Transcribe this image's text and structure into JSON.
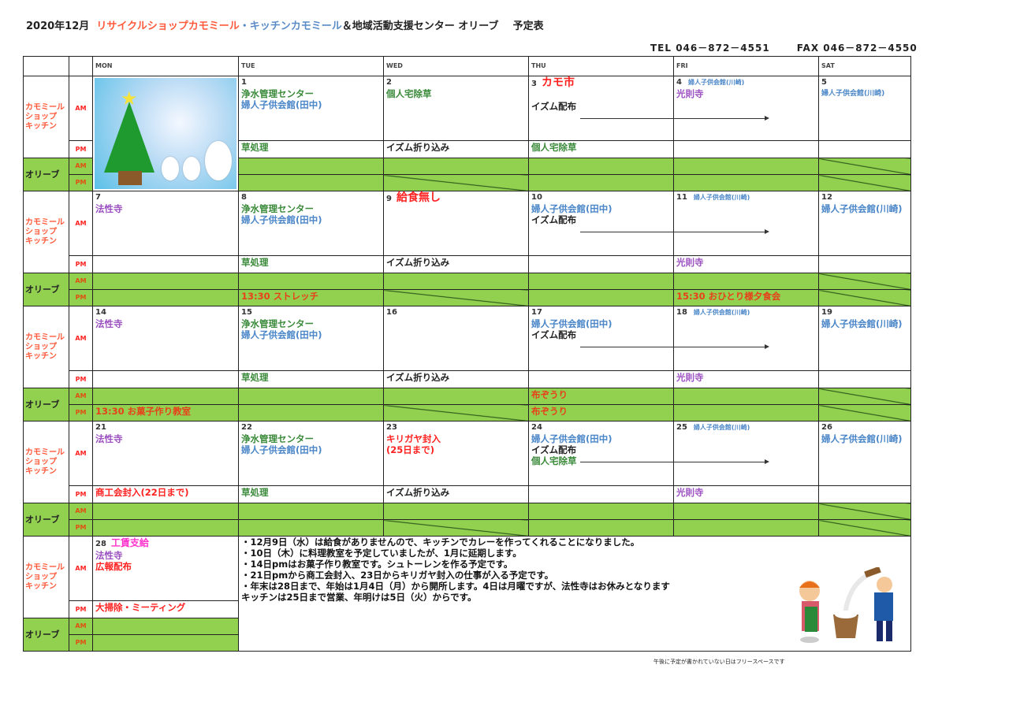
{
  "title": {
    "date": "2020年12月",
    "part1": "リサイクルショップカモミール",
    "dot": "・",
    "part2": "キッチンカモミール",
    "part3": "＆地域活動支援センター オリーブ",
    "part4": "予定表"
  },
  "contact": {
    "tel": "TEL 046－872－4551",
    "fax": "FAX 046－872－4550"
  },
  "weekdays": [
    "MON",
    "TUE",
    "WED",
    "THU",
    "FRI",
    "SAT"
  ],
  "groups": {
    "shop": "カモミール\nショップ\nキッチン",
    "olive": "オリーブ",
    "am": "AM",
    "pm": "PM"
  },
  "colors": {
    "green": "#3a8a3a",
    "blue": "#4a86c8",
    "purple": "#9b4fc0",
    "red": "#ff2020",
    "black": "#222222",
    "orange": "#e8401a",
    "fill": "#92d050"
  },
  "weeks": [
    {
      "days": [
        {
          "image": "christmas-tree-snowmen"
        },
        {
          "n": "1",
          "am": [
            {
              "t": "浄水管理センター",
              "c": "green"
            },
            {
              "t": "婦人子供会館(田中)",
              "c": "blue"
            }
          ],
          "pm": [
            {
              "t": "草処理",
              "c": "green"
            }
          ]
        },
        {
          "n": "2",
          "am": [
            {
              "t": "個人宅除草",
              "c": "green"
            }
          ],
          "pm": [
            {
              "t": "イズム折り込み",
              "c": "black"
            }
          ],
          "opm": {
            "crossed": true
          }
        },
        {
          "n": "3",
          "tag": {
            "t": "カモ市",
            "k": "big"
          },
          "am": [
            {
              "t": "",
              "c": "black"
            },
            {
              "t": "イズム配布",
              "c": "black",
              "arrow": true
            }
          ],
          "pm": [
            {
              "t": "個人宅除草",
              "c": "green"
            }
          ]
        },
        {
          "n": "4",
          "tag": {
            "t": "婦人子供会館(川崎)",
            "k": "small"
          },
          "am": [
            {
              "t": "光則寺",
              "c": "purple"
            }
          ]
        },
        {
          "n": "5",
          "am": [
            {
              "t": "婦人子供会館(川崎)",
              "c": "blue",
              "small": true
            }
          ],
          "oam": {
            "crossed": true
          },
          "opm": {
            "crossed": true
          }
        }
      ]
    },
    {
      "days": [
        {
          "n": "7",
          "am": [
            {
              "t": "法性寺",
              "c": "purple"
            }
          ]
        },
        {
          "n": "8",
          "am": [
            {
              "t": "浄水管理センター",
              "c": "green"
            },
            {
              "t": "婦人子供会館(田中)",
              "c": "blue"
            }
          ],
          "pm": [
            {
              "t": "草処理",
              "c": "green"
            }
          ],
          "opm": {
            "t": "13:30 ストレッチ"
          }
        },
        {
          "n": "9",
          "tag": {
            "t": "給食無し",
            "k": "big"
          },
          "pm": [
            {
              "t": "イズム折り込み",
              "c": "black"
            }
          ],
          "opm": {
            "crossed": true
          }
        },
        {
          "n": "10",
          "am": [
            {
              "t": "婦人子供会館(田中)",
              "c": "blue"
            },
            {
              "t": "イズム配布",
              "c": "black",
              "arrow": true
            }
          ]
        },
        {
          "n": "11",
          "tag": {
            "t": "婦人子供会館(川崎)",
            "k": "small"
          },
          "pm": [
            {
              "t": "光則寺",
              "c": "purple"
            }
          ],
          "opm": {
            "t": "15:30 おひとり様夕食会"
          }
        },
        {
          "n": "12",
          "am": [
            {
              "t": "婦人子供会館(川崎)",
              "c": "blue"
            }
          ],
          "oam": {
            "crossed": true
          },
          "opm": {
            "crossed": true
          }
        }
      ]
    },
    {
      "days": [
        {
          "n": "14",
          "am": [
            {
              "t": "法性寺",
              "c": "purple"
            }
          ],
          "opm": {
            "t": "13:30 お菓子作り教室"
          }
        },
        {
          "n": "15",
          "am": [
            {
              "t": "浄水管理センター",
              "c": "green"
            },
            {
              "t": "婦人子供会館(田中)",
              "c": "blue"
            }
          ],
          "pm": [
            {
              "t": "草処理",
              "c": "green"
            }
          ]
        },
        {
          "n": "16",
          "pm": [
            {
              "t": "イズム折り込み",
              "c": "black"
            }
          ],
          "opm": {
            "crossed": true
          }
        },
        {
          "n": "17",
          "am": [
            {
              "t": "婦人子供会館(田中)",
              "c": "blue"
            },
            {
              "t": "イズム配布",
              "c": "black",
              "arrow": true
            }
          ],
          "oam": {
            "t": "布ぞうり"
          },
          "opm": {
            "t": "布ぞうり"
          }
        },
        {
          "n": "18",
          "tag": {
            "t": "婦人子供会館(川崎)",
            "k": "small"
          },
          "pm": [
            {
              "t": "光則寺",
              "c": "purple"
            }
          ]
        },
        {
          "n": "19",
          "am": [
            {
              "t": "婦人子供会館(川崎)",
              "c": "blue"
            }
          ],
          "oam": {
            "crossed": true
          },
          "opm": {
            "crossed": true
          }
        }
      ]
    },
    {
      "days": [
        {
          "n": "21",
          "am": [
            {
              "t": "法性寺",
              "c": "purple"
            }
          ],
          "pm": [
            {
              "t": "商工会封入(22日まで)",
              "c": "red"
            }
          ]
        },
        {
          "n": "22",
          "am": [
            {
              "t": "浄水管理センター",
              "c": "green"
            },
            {
              "t": "婦人子供会館(田中)",
              "c": "blue"
            }
          ],
          "pm": [
            {
              "t": "草処理",
              "c": "green"
            }
          ]
        },
        {
          "n": "23",
          "am": [
            {
              "t": "キリガヤ封入",
              "c": "red"
            },
            {
              "t": "(25日まで)",
              "c": "red"
            }
          ],
          "pm": [
            {
              "t": "イズム折り込み",
              "c": "black"
            }
          ],
          "opm": {
            "crossed": true
          }
        },
        {
          "n": "24",
          "am": [
            {
              "t": "婦人子供会館(田中)",
              "c": "blue"
            },
            {
              "t": "イズム配布",
              "c": "black",
              "arrow": true
            },
            {
              "t": "個人宅除草",
              "c": "green"
            }
          ]
        },
        {
          "n": "25",
          "tag": {
            "t": "婦人子供会館(川崎)",
            "k": "small"
          },
          "pm": [
            {
              "t": "光則寺",
              "c": "purple"
            }
          ]
        },
        {
          "n": "26",
          "am": [
            {
              "t": "婦人子供会館(川崎)",
              "c": "blue"
            }
          ],
          "oam": {
            "crossed": true
          },
          "opm": {
            "crossed": true
          }
        }
      ]
    },
    {
      "days": [
        {
          "n": "28",
          "tag": {
            "t": "工賃支給",
            "k": "mag"
          },
          "am": [
            {
              "t": "法性寺",
              "c": "purple"
            },
            {
              "t": "広報配布",
              "c": "red"
            }
          ],
          "pm": [
            {
              "t": "大掃除・ミーティング",
              "c": "red"
            }
          ]
        }
      ]
    }
  ],
  "notes": [
    "・12月9日（水）は給食がありませんので、キッチンでカレーを作ってくれることになりました。",
    "・10日（木）に料理教室を予定していましたが、1月に延期します。",
    "・14日pmはお菓子作り教室です。シュトーレンを作る予定です。",
    "・21日pmから商工会封入、23日からキリガヤ封入の仕事が入る予定です。",
    "・年末は28日まで、年始は1月4日（月）から開所します。4日は月曜ですが、法性寺はお休みとなります",
    "キッチンは25日まで営業、年明けは5日（火）からです。"
  ],
  "notes_image": "mochi-pounding",
  "footnote": "午後に予定が書かれていない日はフリースペースです"
}
